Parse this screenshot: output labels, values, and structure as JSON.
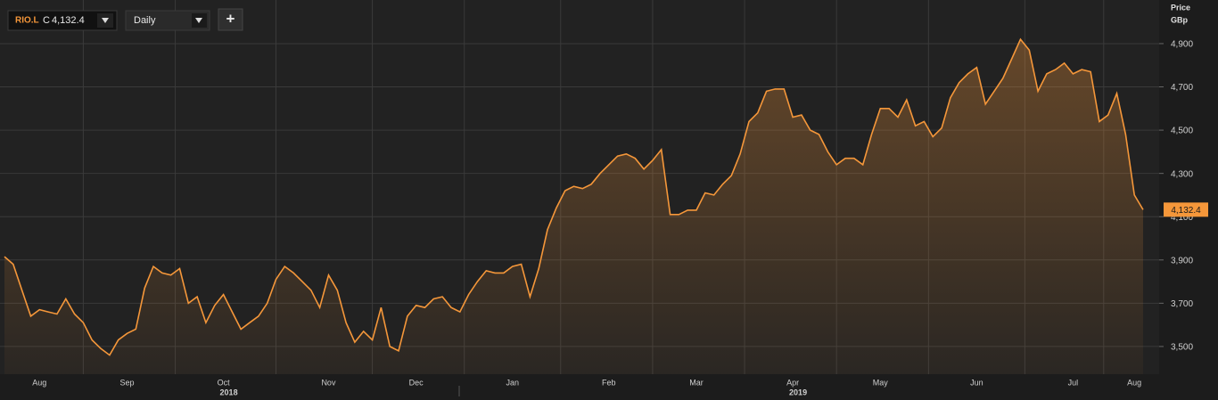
{
  "toolbar": {
    "symbol": "RIO.L",
    "close_prefix": "C",
    "close": "4,132.4",
    "interval": "Daily",
    "add": "+"
  },
  "chart_data": {
    "type": "area-line",
    "color": "#f5973a",
    "axis_title": "Price",
    "axis_unit": "GBp",
    "last_value_label": "4,132.4",
    "year_labels": [
      "2018",
      "2019"
    ],
    "categories": [
      null,
      null,
      null,
      null,
      "Aug",
      null,
      null,
      null,
      null,
      null,
      null,
      null,
      null,
      null,
      "Sep",
      null,
      null,
      null,
      null,
      null,
      null,
      null,
      null,
      null,
      null,
      "Oct",
      null,
      null,
      null,
      null,
      null,
      null,
      null,
      null,
      null,
      null,
      null,
      "Nov",
      null,
      null,
      null,
      null,
      null,
      null,
      null,
      null,
      null,
      "Dec",
      null,
      null,
      null,
      null,
      null,
      null,
      null,
      null,
      null,
      null,
      "Jan",
      null,
      null,
      null,
      null,
      null,
      null,
      null,
      null,
      null,
      null,
      "Feb",
      null,
      null,
      null,
      null,
      null,
      null,
      null,
      null,
      null,
      "Mar",
      null,
      null,
      null,
      null,
      null,
      null,
      null,
      null,
      null,
      null,
      "Apr",
      null,
      null,
      null,
      null,
      null,
      null,
      null,
      null,
      null,
      "May",
      null,
      null,
      null,
      null,
      null,
      null,
      null,
      null,
      null,
      null,
      "Jun",
      null,
      null,
      null,
      null,
      null,
      null,
      null,
      null,
      null,
      null,
      "Jul",
      null,
      null,
      null,
      null,
      null,
      null,
      "Aug",
      null
    ],
    "values": [
      3915,
      3880,
      3760,
      3640,
      3670,
      3660,
      3650,
      3720,
      3650,
      3610,
      3530,
      3490,
      3460,
      3530,
      3560,
      3580,
      3770,
      3870,
      3840,
      3830,
      3860,
      3700,
      3730,
      3610,
      3690,
      3740,
      3660,
      3580,
      3610,
      3640,
      3700,
      3810,
      3870,
      3840,
      3800,
      3760,
      3680,
      3830,
      3760,
      3610,
      3520,
      3570,
      3530,
      3680,
      3500,
      3480,
      3640,
      3690,
      3680,
      3720,
      3730,
      3680,
      3660,
      3740,
      3800,
      3850,
      3840,
      3840,
      3870,
      3880,
      3730,
      3860,
      4040,
      4140,
      4220,
      4240,
      4230,
      4250,
      4300,
      4340,
      4380,
      4390,
      4370,
      4320,
      4360,
      4410,
      4110,
      4110,
      4130,
      4130,
      4210,
      4200,
      4250,
      4290,
      4390,
      4540,
      4580,
      4680,
      4690,
      4690,
      4560,
      4570,
      4500,
      4480,
      4400,
      4340,
      4370,
      4370,
      4340,
      4480,
      4600,
      4600,
      4560,
      4640,
      4520,
      4540,
      4470,
      4510,
      4650,
      4720,
      4760,
      4790,
      4620,
      4680,
      4740,
      4830,
      4920,
      4870,
      4680,
      4760,
      4780,
      4810,
      4760,
      4780,
      4770,
      4540,
      4570,
      4670,
      4480,
      4200,
      4132.4
    ],
    "ylim": [
      3372,
      5081
    ],
    "yticks": [
      {
        "value": 3500,
        "label": "3,500"
      },
      {
        "value": 3700,
        "label": "3,700"
      },
      {
        "value": 3900,
        "label": "3,900"
      },
      {
        "value": 4100,
        "label": "4,100"
      },
      {
        "value": 4300,
        "label": "4,300"
      },
      {
        "value": 4500,
        "label": "4,500"
      },
      {
        "value": 4700,
        "label": "4,700"
      },
      {
        "value": 4900,
        "label": "4,900"
      }
    ],
    "grid": true
  }
}
